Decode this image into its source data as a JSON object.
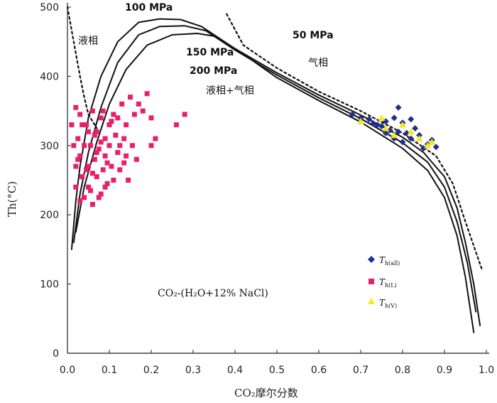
{
  "chart_data": {
    "type": "scatter",
    "xlabel": "CO₂摩尔分数",
    "ylabel": "Th(°C)",
    "xlim": [
      0,
      1.0
    ],
    "ylim": [
      0,
      500
    ],
    "x_ticks": [
      "0.0",
      "0.1",
      "0.2",
      "0.3",
      "0.4",
      "0.5",
      "0.6",
      "0.7",
      "0.8",
      "0.9",
      "1.0"
    ],
    "y_ticks": [
      "0",
      "100",
      "200",
      "300",
      "400",
      "500"
    ],
    "annotation": "CO₂-(H₂O+12% NaCl)",
    "region_labels": {
      "liquid": "液相",
      "vapor": "气相",
      "two_phase": "液相+气相"
    },
    "curves": [
      {
        "name": "50 MPa",
        "style": "dashed",
        "points": [
          [
            0.0,
            500
          ],
          [
            0.015,
            450
          ],
          [
            0.03,
            400
          ],
          [
            0.04,
            370
          ],
          [
            0.05,
            345
          ],
          [
            0.07,
            325
          ]
        ],
        "points_right": [
          [
            0.38,
            490
          ],
          [
            0.42,
            445
          ],
          [
            0.5,
            412
          ],
          [
            0.6,
            378
          ],
          [
            0.7,
            350
          ],
          [
            0.8,
            318
          ],
          [
            0.88,
            285
          ],
          [
            0.92,
            245
          ],
          [
            0.95,
            190
          ],
          [
            0.97,
            155
          ],
          [
            0.99,
            120
          ]
        ]
      },
      {
        "name": "100 MPa",
        "style": "solid",
        "points": [
          [
            0.01,
            150
          ],
          [
            0.02,
            220
          ],
          [
            0.03,
            270
          ],
          [
            0.05,
            340
          ],
          [
            0.08,
            400
          ],
          [
            0.12,
            450
          ],
          [
            0.17,
            478
          ],
          [
            0.22,
            483
          ],
          [
            0.27,
            482
          ],
          [
            0.32,
            472
          ],
          [
            0.4,
            440
          ],
          [
            0.5,
            405
          ],
          [
            0.6,
            373
          ],
          [
            0.7,
            344
          ],
          [
            0.8,
            312
          ],
          [
            0.85,
            290
          ],
          [
            0.9,
            255
          ],
          [
            0.93,
            210
          ],
          [
            0.95,
            160
          ],
          [
            0.97,
            100
          ],
          [
            0.985,
            40
          ]
        ]
      },
      {
        "name": "150 MPa",
        "style": "solid",
        "points": [
          [
            0.015,
            160
          ],
          [
            0.03,
            230
          ],
          [
            0.05,
            290
          ],
          [
            0.08,
            355
          ],
          [
            0.12,
            420
          ],
          [
            0.17,
            460
          ],
          [
            0.22,
            472
          ],
          [
            0.28,
            473
          ],
          [
            0.33,
            466
          ],
          [
            0.4,
            438
          ],
          [
            0.5,
            402
          ],
          [
            0.6,
            369
          ],
          [
            0.7,
            339
          ],
          [
            0.8,
            304
          ],
          [
            0.86,
            276
          ],
          [
            0.9,
            240
          ],
          [
            0.93,
            190
          ],
          [
            0.955,
            130
          ],
          [
            0.975,
            60
          ]
        ]
      },
      {
        "name": "200 MPa",
        "style": "solid",
        "points": [
          [
            0.02,
            175
          ],
          [
            0.04,
            240
          ],
          [
            0.07,
            305
          ],
          [
            0.1,
            360
          ],
          [
            0.14,
            410
          ],
          [
            0.19,
            445
          ],
          [
            0.25,
            460
          ],
          [
            0.31,
            462
          ],
          [
            0.35,
            458
          ],
          [
            0.42,
            432
          ],
          [
            0.5,
            398
          ],
          [
            0.6,
            365
          ],
          [
            0.7,
            334
          ],
          [
            0.8,
            296
          ],
          [
            0.86,
            264
          ],
          [
            0.9,
            225
          ],
          [
            0.93,
            170
          ],
          [
            0.95,
            110
          ],
          [
            0.97,
            30
          ]
        ]
      }
    ],
    "series": [
      {
        "name": "T_h(all)",
        "legend_main": "T",
        "legend_sub": "h(all)",
        "marker": "diamond",
        "color": "#1f2f8f",
        "points": [
          [
            0.68,
            345
          ],
          [
            0.7,
            340
          ],
          [
            0.72,
            338
          ],
          [
            0.74,
            330
          ],
          [
            0.75,
            328
          ],
          [
            0.76,
            335
          ],
          [
            0.77,
            322
          ],
          [
            0.78,
            340
          ],
          [
            0.79,
            355
          ],
          [
            0.8,
            333
          ],
          [
            0.81,
            318
          ],
          [
            0.82,
            310
          ],
          [
            0.83,
            325
          ],
          [
            0.84,
            315
          ],
          [
            0.78,
            310
          ],
          [
            0.79,
            320
          ],
          [
            0.8,
            305
          ],
          [
            0.86,
            302
          ],
          [
            0.87,
            308
          ],
          [
            0.88,
            298
          ],
          [
            0.76,
            318
          ],
          [
            0.73,
            332
          ],
          [
            0.82,
            338
          ],
          [
            0.85,
            296
          ]
        ]
      },
      {
        "name": "T_h(L)",
        "legend_main": "T",
        "legend_sub": "h(L)",
        "marker": "square",
        "color": "#e8206a",
        "points": [
          [
            0.01,
            330
          ],
          [
            0.015,
            300
          ],
          [
            0.02,
            270
          ],
          [
            0.02,
            240
          ],
          [
            0.025,
            310
          ],
          [
            0.03,
            285
          ],
          [
            0.03,
            345
          ],
          [
            0.035,
            255
          ],
          [
            0.04,
            225
          ],
          [
            0.04,
            300
          ],
          [
            0.045,
            330
          ],
          [
            0.05,
            270
          ],
          [
            0.05,
            240
          ],
          [
            0.055,
            300
          ],
          [
            0.06,
            215
          ],
          [
            0.06,
            350
          ],
          [
            0.065,
            280
          ],
          [
            0.07,
            255
          ],
          [
            0.07,
            320
          ],
          [
            0.075,
            295
          ],
          [
            0.08,
            230
          ],
          [
            0.08,
            340
          ],
          [
            0.085,
            265
          ],
          [
            0.09,
            310
          ],
          [
            0.09,
            285
          ],
          [
            0.095,
            245
          ],
          [
            0.1,
            330
          ],
          [
            0.1,
            300
          ],
          [
            0.105,
            270
          ],
          [
            0.11,
            345
          ],
          [
            0.11,
            250
          ],
          [
            0.115,
            315
          ],
          [
            0.12,
            290
          ],
          [
            0.12,
            340
          ],
          [
            0.125,
            265
          ],
          [
            0.13,
            360
          ],
          [
            0.135,
            310
          ],
          [
            0.14,
            285
          ],
          [
            0.14,
            330
          ],
          [
            0.145,
            250
          ],
          [
            0.15,
            370
          ],
          [
            0.155,
            300
          ],
          [
            0.16,
            345
          ],
          [
            0.165,
            280
          ],
          [
            0.17,
            360
          ],
          [
            0.18,
            350
          ],
          [
            0.19,
            375
          ],
          [
            0.2,
            300
          ],
          [
            0.2,
            340
          ],
          [
            0.21,
            310
          ],
          [
            0.26,
            330
          ],
          [
            0.28,
            345
          ],
          [
            0.02,
            355
          ],
          [
            0.035,
            330
          ],
          [
            0.045,
            265
          ],
          [
            0.055,
            235
          ],
          [
            0.065,
            315
          ],
          [
            0.075,
            225
          ],
          [
            0.085,
            350
          ],
          [
            0.095,
            275
          ],
          [
            0.03,
            220
          ],
          [
            0.05,
            320
          ],
          [
            0.07,
            290
          ],
          [
            0.09,
            240
          ],
          [
            0.025,
            280
          ],
          [
            0.06,
            260
          ],
          [
            0.08,
            305
          ],
          [
            0.105,
            335
          ],
          [
            0.125,
            300
          ],
          [
            0.135,
            275
          ]
        ]
      },
      {
        "name": "T_h(V)",
        "legend_main": "T",
        "legend_sub": "h(V)",
        "marker": "triangle",
        "color": "#f7e81c",
        "points": [
          [
            0.7,
            335
          ],
          [
            0.75,
            340
          ],
          [
            0.76,
            325
          ],
          [
            0.78,
            315
          ],
          [
            0.8,
            330
          ],
          [
            0.82,
            320
          ],
          [
            0.84,
            310
          ],
          [
            0.86,
            300
          ],
          [
            0.87,
            305
          ]
        ]
      }
    ]
  }
}
